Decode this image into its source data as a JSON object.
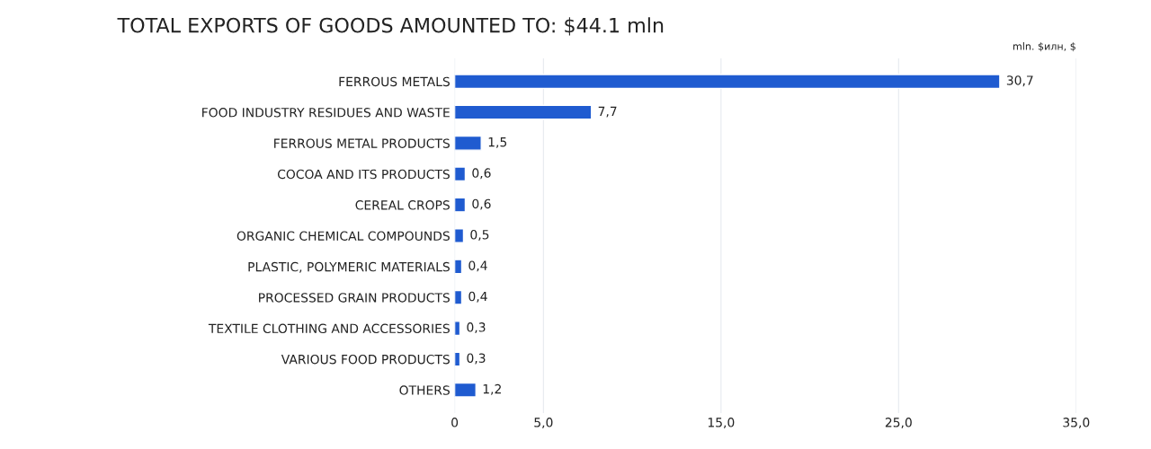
{
  "chart_data": {
    "type": "bar",
    "orientation": "horizontal",
    "title": "TOTAL EXPORTS OF GOODS AMOUNTED TO: $44.1 mln",
    "xlabel": "mln. $илн, $",
    "categories": [
      "FERROUS METALS",
      "FOOD INDUSTRY RESIDUES AND WASTE",
      "FERROUS METAL PRODUCTS",
      "COCOA AND ITS PRODUCTS",
      "CEREAL CROPS",
      "ORGANIC CHEMICAL COMPOUNDS",
      "PLASTIC, POLYMERIC MATERIALS",
      "PROCESSED GRAIN PRODUCTS",
      "TEXTILE CLOTHING AND ACCESSORIES",
      "VARIOUS FOOD PRODUCTS",
      "OTHERS"
    ],
    "values": [
      30.7,
      7.7,
      1.5,
      0.6,
      0.6,
      0.5,
      0.4,
      0.4,
      0.3,
      0.3,
      1.2
    ],
    "value_labels": [
      "30,7",
      "7,7",
      "1,5",
      "0,6",
      "0,6",
      "0,5",
      "0,4",
      "0,4",
      "0,3",
      "0,3",
      "1,2"
    ],
    "color": "#1f5bd0",
    "xlim": [
      0,
      35
    ],
    "xticks": [
      0,
      {
        "value": 5,
        "label": "5,0"
      },
      {
        "value": 15,
        "label": "15,0"
      },
      {
        "value": 25,
        "label": "25,0"
      },
      {
        "value": 35,
        "label": "35,0"
      }
    ],
    "grid": "x",
    "legend": false
  }
}
